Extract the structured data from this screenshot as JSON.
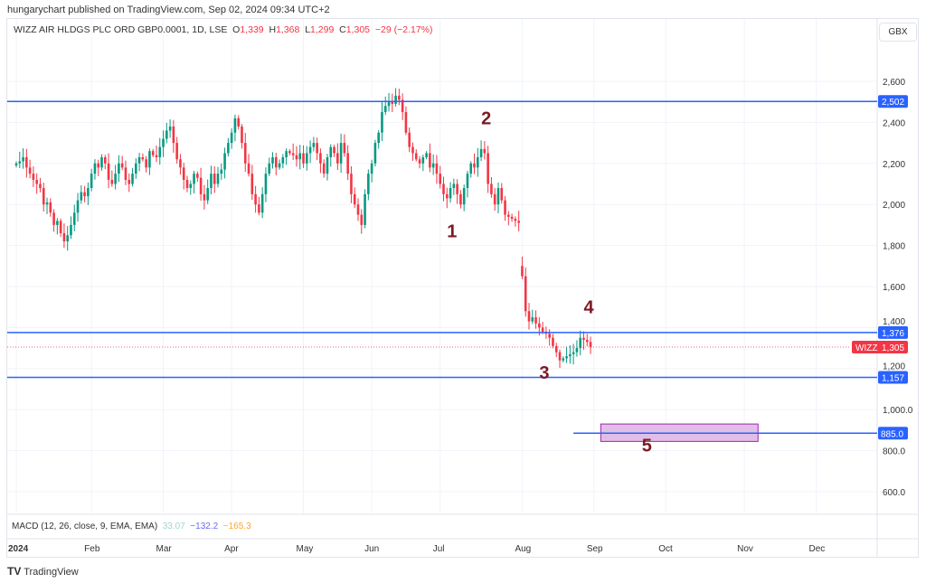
{
  "publisher": "hungarychart published on TradingView.com, Sep 02, 2024 09:34 UTC+2",
  "legend": {
    "symbol": "WIZZ AIR HLDGS PLC ORD GBP0.0001, 1D, LSE",
    "o_label": "O",
    "o": "1,339",
    "h_label": "H",
    "h": "1,368",
    "l_label": "L",
    "l": "1,299",
    "c_label": "C",
    "c": "1,305",
    "change": "−29 (−2.17%)"
  },
  "currency": "GBX",
  "macd": {
    "label": "MACD (12, 26, close, 9, EMA, EMA)",
    "v1": "33.07",
    "v2": "−132.2",
    "v3": "−165.3"
  },
  "footer": "TradingView",
  "colors": {
    "up": "#089981",
    "down": "#f23645",
    "line": "#2962ff",
    "annot": "#7b1a24",
    "box": "#e1bee7"
  },
  "chart_data": {
    "type": "candlestick",
    "title": "WIZZ AIR HLDGS PLC ORD GBP0.0001, 1D, LSE",
    "ylim": [
      450,
      2700
    ],
    "y_ticks": [
      "2,600",
      "2,400",
      "2,200",
      "2,000",
      "1,800",
      "1,600",
      "1,400",
      "1,200",
      "1,000.0",
      "800.0",
      "600.0"
    ],
    "y_tick_values": [
      2600,
      2400,
      2200,
      2000,
      1800,
      1600,
      1400,
      1200,
      1000,
      800,
      600
    ],
    "x_ticks": [
      {
        "label": "2024",
        "day": 0
      },
      {
        "label": "Feb",
        "day": 22
      },
      {
        "label": "Mar",
        "day": 43
      },
      {
        "label": "Apr",
        "day": 63
      },
      {
        "label": "May",
        "day": 84
      },
      {
        "label": "Jun",
        "day": 104
      },
      {
        "label": "Jul",
        "day": 124
      },
      {
        "label": "Aug",
        "day": 148
      },
      {
        "label": "Sep",
        "day": 169
      },
      {
        "label": "Oct",
        "day": 190
      },
      {
        "label": "Nov",
        "day": 213
      },
      {
        "label": "Dec",
        "day": 234
      }
    ],
    "first_open": 2190,
    "gap_opens": {
      "148": 1700
    },
    "closes": [
      2200,
      2210,
      2230,
      2180,
      2150,
      2120,
      2100,
      2080,
      2000,
      2010,
      1960,
      1900,
      1920,
      1860,
      1820,
      1850,
      1900,
      1960,
      2020,
      2060,
      2040,
      2080,
      2150,
      2200,
      2180,
      2230,
      2200,
      2120,
      2100,
      2150,
      2200,
      2180,
      2120,
      2100,
      2150,
      2200,
      2230,
      2220,
      2180,
      2260,
      2240,
      2230,
      2280,
      2320,
      2360,
      2380,
      2300,
      2220,
      2180,
      2120,
      2080,
      2100,
      2150,
      2130,
      2050,
      2020,
      2080,
      2150,
      2100,
      2150,
      2170,
      2250,
      2300,
      2350,
      2420,
      2380,
      2300,
      2200,
      2150,
      2050,
      2000,
      1960,
      2050,
      2150,
      2200,
      2230,
      2180,
      2200,
      2230,
      2260,
      2250,
      2240,
      2220,
      2250,
      2200,
      2250,
      2280,
      2300,
      2250,
      2200,
      2150,
      2230,
      2280,
      2250,
      2200,
      2300,
      2250,
      2150,
      2050,
      2000,
      1950,
      1900,
      2050,
      2150,
      2200,
      2300,
      2350,
      2450,
      2480,
      2500,
      2490,
      2530,
      2510,
      2450,
      2350,
      2280,
      2250,
      2220,
      2200,
      2230,
      2250,
      2180,
      2200,
      2150,
      2100,
      2050,
      2030,
      2080,
      2100,
      2050,
      2000,
      2080,
      2150,
      2200,
      2180,
      2230,
      2270,
      2250,
      2100,
      2050,
      2000,
      2080,
      2020,
      1950,
      1940,
      1930,
      1920,
      1910,
      1650,
      1480,
      1430,
      1450,
      1420,
      1400,
      1380,
      1370,
      1350,
      1310,
      1280,
      1240,
      1250,
      1260,
      1270,
      1280,
      1300,
      1350,
      1340,
      1330,
      1305
    ],
    "horizontal_levels": [
      {
        "value": 2502,
        "label": "2,502"
      },
      {
        "value": 1376,
        "label": "1,376"
      },
      {
        "value": 1157,
        "label": "1,157"
      }
    ],
    "target_level": {
      "value": 885,
      "label": "885.0",
      "start_day": 163
    },
    "target_zone": {
      "low": 845,
      "high": 930,
      "start_day": 171,
      "end_day": 217
    },
    "last_price": {
      "value": 1305,
      "label": "1,305",
      "tag": "WIZZ"
    },
    "annotations": [
      {
        "text": "1",
        "day": 126,
        "price": 1840
      },
      {
        "text": "2",
        "day": 136,
        "price": 2390
      },
      {
        "text": "3",
        "day": 153,
        "price": 1150
      },
      {
        "text": "4",
        "day": 166,
        "price": 1470
      },
      {
        "text": "5",
        "day": 183,
        "price": 795
      }
    ]
  }
}
